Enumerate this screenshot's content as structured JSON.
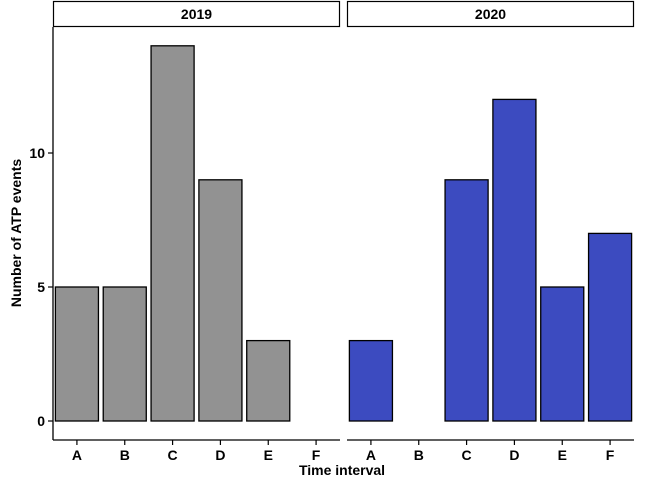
{
  "chart_data": {
    "type": "bar",
    "xlabel": "Time interval",
    "ylabel": "Number of ATP events",
    "ylim": [
      0,
      14.7
    ],
    "yticks": [
      0,
      5,
      10
    ],
    "categories": [
      "A",
      "B",
      "C",
      "D",
      "E",
      "F"
    ],
    "grid": false,
    "legend": "none",
    "panels": [
      {
        "label": "2019",
        "color": "#929292",
        "values": [
          5,
          5,
          14,
          9,
          3,
          0
        ]
      },
      {
        "label": "2020",
        "color": "#3c4bc0",
        "values": [
          3,
          0,
          9,
          12,
          5,
          7
        ]
      }
    ]
  }
}
